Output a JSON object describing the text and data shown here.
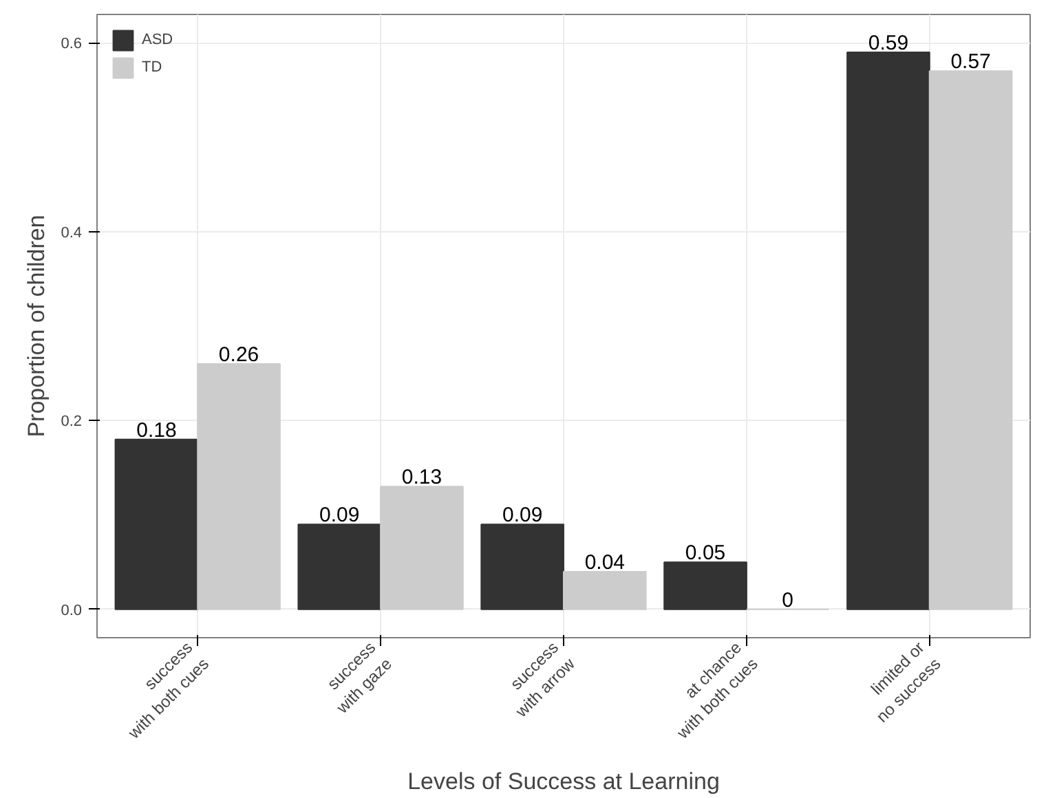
{
  "chart_data": {
    "type": "bar",
    "xlabel": "Levels of Success at Learning",
    "ylabel": "Proportion of children",
    "categories": [
      "success\nwith both cues",
      "success\nwith gaze",
      "success\nwith arrow",
      "at chance\nwith both cues",
      "limited or\nno success"
    ],
    "series": [
      {
        "name": "ASD",
        "color": "#333333",
        "values": [
          0.18,
          0.09,
          0.09,
          0.05,
          0.59
        ]
      },
      {
        "name": "TD",
        "color": "#cccccc",
        "values": [
          0.26,
          0.13,
          0.04,
          0,
          0.57
        ]
      }
    ],
    "ylim": [
      -0.03,
      0.63
    ],
    "yticks": [
      {
        "value": 0,
        "label": "0.0"
      },
      {
        "value": 0.2,
        "label": "0.2"
      },
      {
        "value": 0.4,
        "label": "0.4"
      },
      {
        "value": 0.6,
        "label": "0.6"
      }
    ],
    "data_labels": true,
    "grid": true,
    "legend": "top left"
  }
}
